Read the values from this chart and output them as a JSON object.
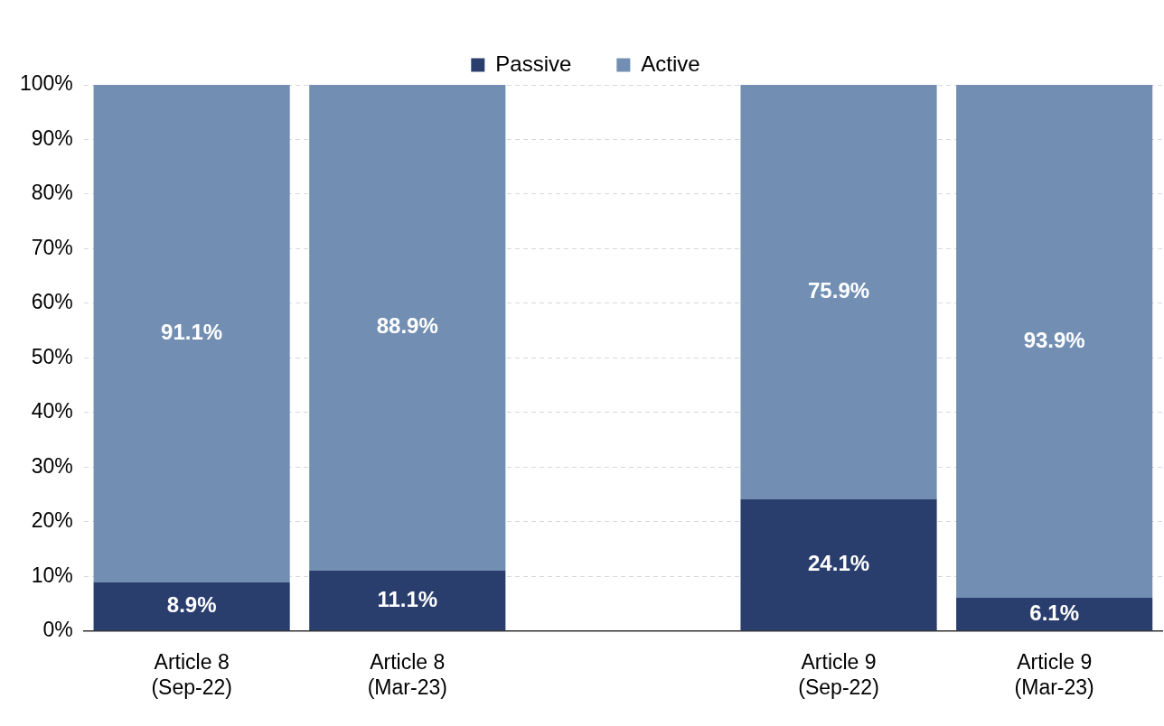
{
  "chart_data": {
    "type": "bar",
    "stacked": true,
    "categories": [
      "Article 8\n(Sep-22)",
      "Article 8\n(Mar-23)",
      null,
      "Article 9\n(Sep-22)",
      "Article 9\n(Mar-23)"
    ],
    "series": [
      {
        "name": "Passive",
        "color": "#2a3e6e",
        "values": [
          8.9,
          11.1,
          null,
          24.1,
          6.1
        ],
        "value_labels": [
          "8.9%",
          "11.1%",
          null,
          "24.1%",
          "6.1%"
        ]
      },
      {
        "name": "Active",
        "color": "#728fb3",
        "values": [
          91.1,
          88.9,
          null,
          75.9,
          93.9
        ],
        "value_labels": [
          "91.1%",
          "88.9%",
          null,
          "75.9%",
          "93.9%"
        ]
      }
    ],
    "ylim": [
      0,
      100
    ],
    "yticks": [
      {
        "value": 0,
        "label": "0%"
      },
      {
        "value": 10,
        "label": "10%"
      },
      {
        "value": 20,
        "label": "20%"
      },
      {
        "value": 30,
        "label": "30%"
      },
      {
        "value": 40,
        "label": "40%"
      },
      {
        "value": 50,
        "label": "50%"
      },
      {
        "value": 60,
        "label": "60%"
      },
      {
        "value": 70,
        "label": "70%"
      },
      {
        "value": 80,
        "label": "80%"
      },
      {
        "value": 90,
        "label": "90%"
      },
      {
        "value": 100,
        "label": "100%"
      }
    ],
    "grid": "y",
    "legend": "top"
  }
}
